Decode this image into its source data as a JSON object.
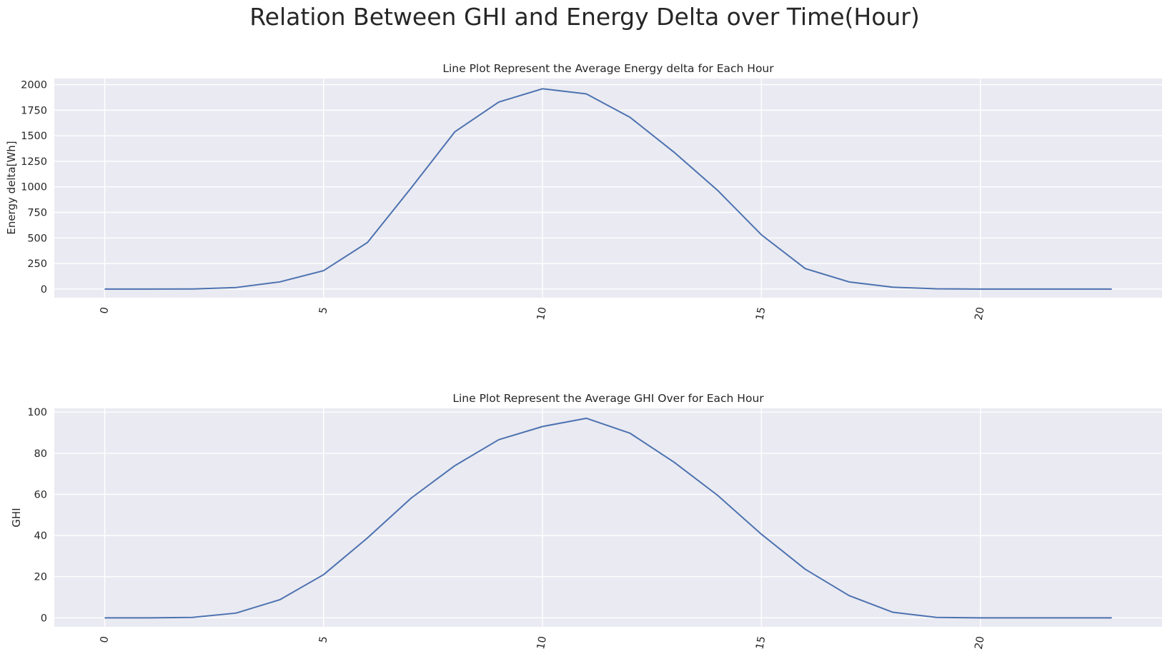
{
  "figure": {
    "title": "Relation Between GHI and Energy Delta over Time(Hour)"
  },
  "colors": {
    "background": "#ffffff",
    "plot_background": "#eaeaf2",
    "grid": "#ffffff",
    "line": "#4c72b0",
    "text": "#262626"
  },
  "chart_data": [
    {
      "type": "line",
      "title": "Line Plot Represent the Average Energy delta for Each Hour",
      "xlabel": "",
      "ylabel": "Energy delta[Wh]",
      "x": [
        0,
        1,
        2,
        3,
        4,
        5,
        6,
        7,
        8,
        9,
        10,
        11,
        12,
        13,
        14,
        15,
        16,
        17,
        18,
        19,
        20,
        21,
        22,
        23
      ],
      "series": [
        {
          "values": [
            0,
            0,
            1,
            15,
            70,
            180,
            455,
            990,
            1540,
            1830,
            1960,
            1910,
            1680,
            1340,
            965,
            530,
            200,
            70,
            18,
            2,
            0,
            0,
            0,
            0
          ]
        }
      ],
      "xticks": [
        0,
        5,
        10,
        15,
        20
      ],
      "yticks": [
        0,
        250,
        500,
        750,
        1000,
        1250,
        1500,
        1750,
        2000
      ],
      "xlim": [
        -1.15,
        24.15
      ],
      "ylim": [
        -85,
        2060
      ],
      "grid": true,
      "xtick_rotation": "80deg"
    },
    {
      "type": "line",
      "title": "Line Plot Represent the Average GHI Over for Each Hour",
      "xlabel": "",
      "ylabel": "GHI",
      "x": [
        0,
        1,
        2,
        3,
        4,
        5,
        6,
        7,
        8,
        9,
        10,
        11,
        12,
        13,
        14,
        15,
        16,
        17,
        18,
        19,
        20,
        21,
        22,
        23
      ],
      "series": [
        {
          "values": [
            0,
            0,
            0.2,
            2.3,
            8.8,
            21,
            38.8,
            58.2,
            74,
            86.6,
            93,
            97,
            89.7,
            75.7,
            59.5,
            40.6,
            23.6,
            10.8,
            2.7,
            0.2,
            0,
            0,
            0,
            0
          ]
        }
      ],
      "xticks": [
        0,
        5,
        10,
        15,
        20
      ],
      "yticks": [
        0,
        20,
        40,
        60,
        80,
        100
      ],
      "xlim": [
        -1.15,
        24.15
      ],
      "ylim": [
        -4.4,
        101.8
      ],
      "grid": true,
      "xtick_rotation": "80deg"
    }
  ]
}
